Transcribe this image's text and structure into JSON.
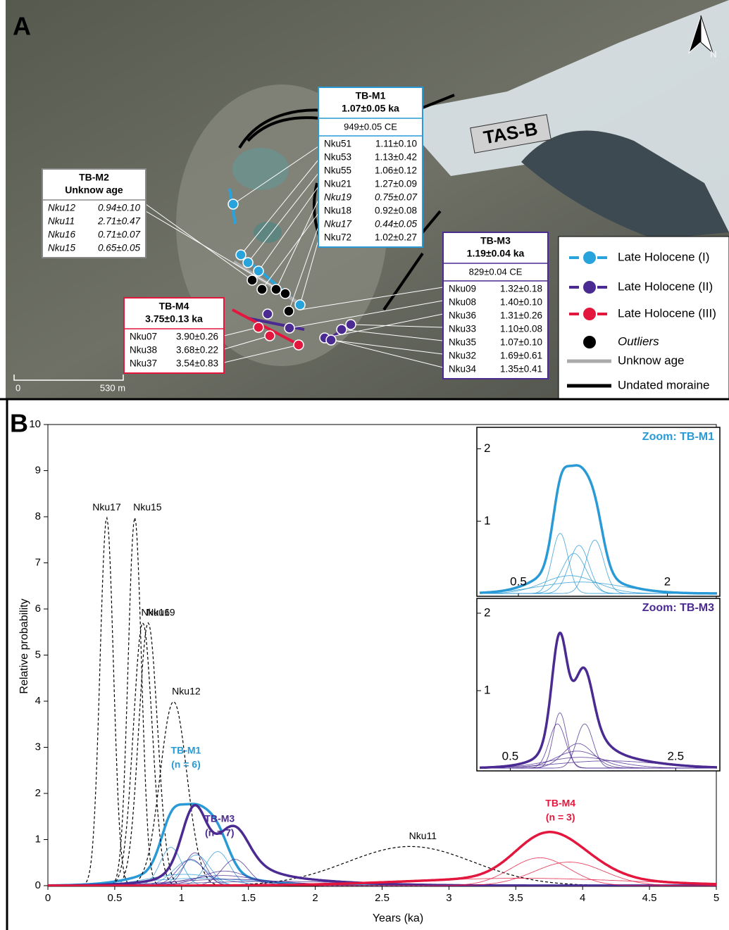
{
  "panel_a": {
    "label": "A",
    "north": "N",
    "glacier": "TAS-B",
    "scale": [
      "0",
      "530 m"
    ],
    "legend": [
      {
        "label": "Late Holocene (I)",
        "color": "#29a3dc",
        "style": "dot"
      },
      {
        "label": "Late Holocene (II)",
        "color": "#4b2a91",
        "style": "dot"
      },
      {
        "label": "Late Holocene (III)",
        "color": "#e3173e",
        "style": "dot"
      },
      {
        "label": "Outliers",
        "color": "#000000",
        "style": "point"
      },
      {
        "label": "Unknow age",
        "color": "#aaaaaa",
        "style": "line"
      },
      {
        "label": "Undated moraine",
        "color": "#000000",
        "style": "line"
      }
    ]
  },
  "chart_data": {
    "type": "probability-density",
    "label": "B",
    "xlabel": "Years (ka)",
    "ylabel": "Relative probability",
    "xlim": [
      0,
      5
    ],
    "ylim": [
      0,
      10
    ],
    "xticks": [
      0,
      0.5,
      1,
      1.5,
      2,
      2.5,
      3,
      3.5,
      4,
      4.5,
      5
    ],
    "yticks": [
      0,
      1,
      2,
      3,
      4,
      5,
      6,
      7,
      8,
      9,
      10
    ],
    "outlier_color": "#000000",
    "groups": [
      {
        "name": "TB-M1",
        "age": "1.07±0.05 ka",
        "ce": "949±0.05 CE",
        "n_label": "(n = 6)",
        "color": "#2a9ad6",
        "zoom": {
          "title": "Zoom: TB-M1",
          "xlim": [
            0.11,
            2.5
          ],
          "ylim": [
            0,
            2.2
          ],
          "xticks": [
            0.5,
            2
          ],
          "yticks": [
            1,
            2
          ]
        },
        "samples": [
          {
            "id": "Nku51",
            "label": "1.11±0.10",
            "age": 1.11,
            "err": 0.1
          },
          {
            "id": "Nku53",
            "label": "1.13±0.42",
            "age": 1.13,
            "err": 0.42
          },
          {
            "id": "Nku55",
            "label": "1.06±0.12",
            "age": 1.06,
            "err": 0.12
          },
          {
            "id": "Nku21",
            "label": "1.27±0.09",
            "age": 1.27,
            "err": 0.09
          },
          {
            "id": "Nku19",
            "label": "0.75±0.07",
            "age": 0.75,
            "err": 0.07,
            "outlier": true
          },
          {
            "id": "Nku18",
            "label": "0.92±0.08",
            "age": 0.92,
            "err": 0.08
          },
          {
            "id": "Nku17",
            "label": "0.44±0.05",
            "age": 0.44,
            "err": 0.05,
            "outlier": true
          },
          {
            "id": "Nku72",
            "label": "1.02±0.27",
            "age": 1.02,
            "err": 0.27
          }
        ]
      },
      {
        "name": "TB-M2",
        "age": "Unknow age",
        "color": "#888888",
        "samples": [
          {
            "id": "Nku12",
            "label": "0.94±0.10",
            "age": 0.94,
            "err": 0.1,
            "outlier": true
          },
          {
            "id": "Nku11",
            "label": "2.71±0.47",
            "age": 2.71,
            "err": 0.47,
            "outlier": true
          },
          {
            "id": "Nku16",
            "label": "0.71±0.07",
            "age": 0.71,
            "err": 0.07,
            "outlier": true
          },
          {
            "id": "Nku15",
            "label": "0.65±0.05",
            "age": 0.65,
            "err": 0.05,
            "outlier": true
          }
        ]
      },
      {
        "name": "TB-M3",
        "age": "1.19±0.04 ka",
        "ce": "829±0.04 CE",
        "n_label": "(n = 7)",
        "color": "#4b2a91",
        "zoom": {
          "title": "Zoom: TB-M3",
          "xlim": [
            0.13,
            3
          ],
          "ylim": [
            0,
            2.1
          ],
          "xticks": [
            0.5,
            2.5
          ],
          "yticks": [
            1,
            2
          ]
        },
        "samples": [
          {
            "id": "Nku09",
            "label": "1.32±0.18",
            "age": 1.32,
            "err": 0.18
          },
          {
            "id": "Nku08",
            "label": "1.40±0.10",
            "age": 1.4,
            "err": 0.1
          },
          {
            "id": "Nku36",
            "label": "1.31±0.26",
            "age": 1.31,
            "err": 0.26
          },
          {
            "id": "Nku33",
            "label": "1.10±0.08",
            "age": 1.1,
            "err": 0.08
          },
          {
            "id": "Nku35",
            "label": "1.07±0.10",
            "age": 1.07,
            "err": 0.1
          },
          {
            "id": "Nku32",
            "label": "1.69±0.61",
            "age": 1.69,
            "err": 0.61
          },
          {
            "id": "Nku34",
            "label": "1.35±0.41",
            "age": 1.35,
            "err": 0.41
          }
        ]
      },
      {
        "name": "TB-M4",
        "age": "3.75±0.13 ka",
        "n_label": "(n = 3)",
        "color": "#e3173e",
        "samples": [
          {
            "id": "Nku07",
            "label": "3.90±0.26",
            "age": 3.9,
            "err": 0.26
          },
          {
            "id": "Nku38",
            "label": "3.68±0.22",
            "age": 3.68,
            "err": 0.22
          },
          {
            "id": "Nku37",
            "label": "3.54±0.83",
            "age": 3.54,
            "err": 0.83
          }
        ]
      }
    ]
  }
}
